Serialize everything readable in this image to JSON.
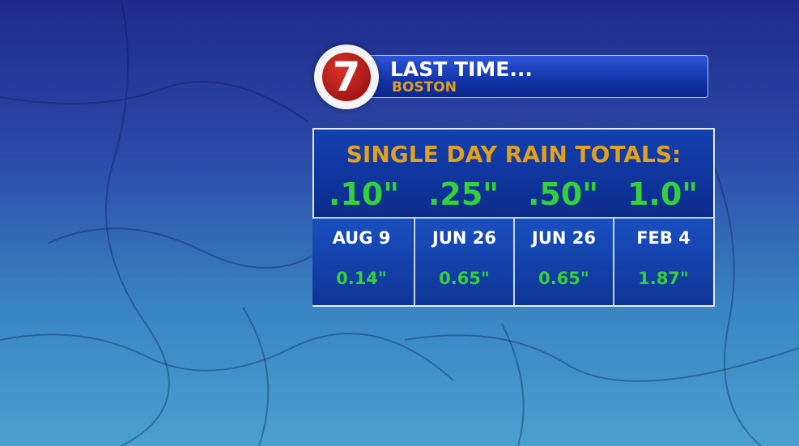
{
  "logo": {
    "text": "7"
  },
  "header": {
    "title": "LAST TIME...",
    "subtitle": "BOSTON"
  },
  "table": {
    "title": "SINGLE DAY RAIN TOTALS:",
    "thresholds": [
      ".10\"",
      ".25\"",
      ".50\"",
      "1.0\""
    ],
    "columns": [
      {
        "date": "AUG 9",
        "amount": "0.14\""
      },
      {
        "date": "JUN 26",
        "amount": "0.65\""
      },
      {
        "date": "JUN 26",
        "amount": "0.65\""
      },
      {
        "date": "FEB 4",
        "amount": "1.87\""
      }
    ]
  }
}
